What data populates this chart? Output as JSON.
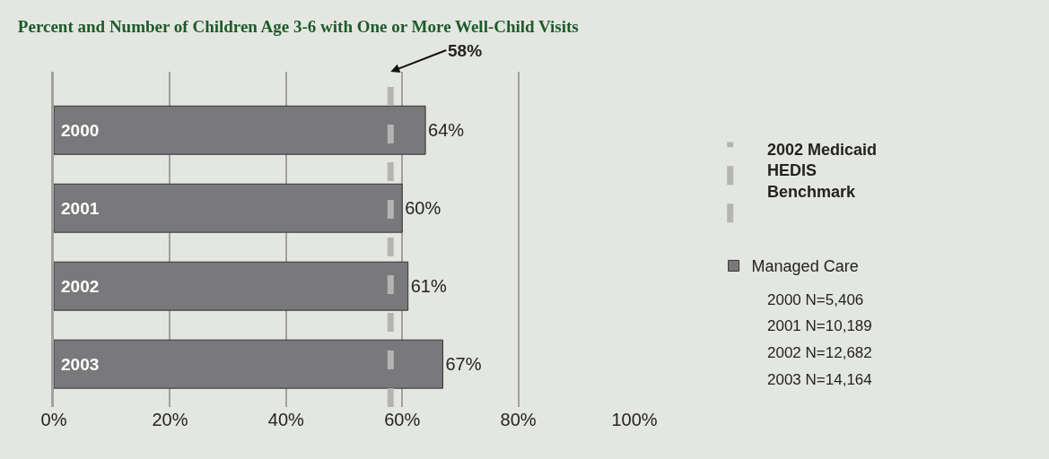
{
  "chart_data": {
    "type": "bar",
    "orientation": "horizontal",
    "title": "Percent and Number of Children Age 3-6 with One or More Well-Child Visits",
    "categories": [
      "2000",
      "2001",
      "2002",
      "2003"
    ],
    "series": [
      {
        "name": "Managed Care",
        "color": "#79797b",
        "values": [
          64,
          60,
          61,
          67
        ],
        "value_labels": [
          "64%",
          "60%",
          "61%",
          "67%"
        ]
      }
    ],
    "xlim": [
      0,
      100
    ],
    "xticks": [
      {
        "value": 0,
        "label": "0%"
      },
      {
        "value": 20,
        "label": "20%"
      },
      {
        "value": 40,
        "label": "40%"
      },
      {
        "value": 60,
        "label": "60%"
      },
      {
        "value": 80,
        "label": "80%"
      },
      {
        "value": 100,
        "label": "100%"
      }
    ],
    "ref_lines": [
      {
        "axis": "x",
        "value": 58,
        "label": "58%",
        "color": "#b4b4b4",
        "line_style": "dashed"
      }
    ],
    "annotations": [
      "2002 Medicaid HEDIS Benchmark",
      "2000 N=5,406",
      "2001 N=10,189",
      "2002 N=12,682",
      "2003 N=14,164"
    ],
    "grid": "x",
    "legend": "right"
  }
}
